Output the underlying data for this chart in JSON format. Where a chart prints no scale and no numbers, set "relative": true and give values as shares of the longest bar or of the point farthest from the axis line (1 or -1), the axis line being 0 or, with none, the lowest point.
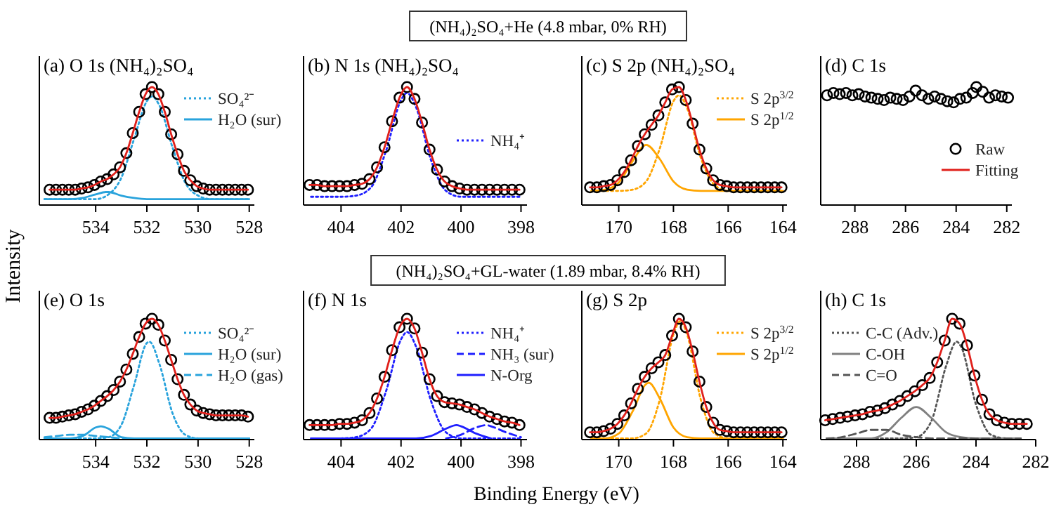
{
  "chart_data": [
    {
      "type": "line",
      "title": "(a) O 1s (NH₄)₂SO₄",
      "ylabel": "Intensity",
      "annotations": [
        "(NH₄)₂SO₄+He (4.8 mbar, 0% RH)"
      ],
      "relative": true,
      "legend": "top right",
      "xlim": [
        536.2,
        527.8
      ],
      "xticks": [
        534,
        532,
        530,
        528
      ],
      "x": [
        535.8,
        535.55,
        535.3,
        535.05,
        534.8,
        534.55,
        534.3,
        534.05,
        533.8,
        533.55,
        533.3,
        533.05,
        532.8,
        532.55,
        532.3,
        532.05,
        531.8,
        531.55,
        531.3,
        531.05,
        530.8,
        530.55,
        530.3,
        530.05,
        529.8,
        529.55,
        529.3,
        529.05,
        528.8,
        528.55,
        528.3,
        528.05
      ],
      "series": [
        {
          "name": "SO₄²⁻",
          "type": "line",
          "line_style": "dotted",
          "color": "#29a3dc",
          "x": [
            536,
            535.5,
            535,
            534.5,
            534,
            533.5,
            533,
            532.5,
            532,
            531.8,
            531.5,
            531,
            530.5,
            530,
            529.5,
            529,
            528.5,
            528
          ],
          "values": [
            0.05,
            0.05,
            0.05,
            0.05,
            0.05,
            0.09,
            0.23,
            0.56,
            0.88,
            0.92,
            0.84,
            0.49,
            0.19,
            0.08,
            0.05,
            0.05,
            0.05,
            0.05
          ]
        },
        {
          "name": "H₂O (sur)",
          "type": "line",
          "line_style": "solid",
          "color": "#29a3dc",
          "x": [
            536,
            535.5,
            535,
            534.5,
            534,
            533.6,
            533.5,
            533,
            532.5,
            532,
            531,
            530,
            529,
            528
          ],
          "values": [
            0.05,
            0.05,
            0.05,
            0.06,
            0.09,
            0.11,
            0.11,
            0.08,
            0.06,
            0.05,
            0.05,
            0.05,
            0.05,
            0.05
          ]
        },
        {
          "type": "scatter",
          "marker": "circle",
          "color": "#000000",
          "values": [
            0.13,
            0.13,
            0.13,
            0.13,
            0.13,
            0.14,
            0.15,
            0.17,
            0.2,
            0.22,
            0.26,
            0.32,
            0.44,
            0.61,
            0.79,
            0.94,
            1.0,
            0.94,
            0.79,
            0.6,
            0.43,
            0.29,
            0.21,
            0.16,
            0.14,
            0.13,
            0.13,
            0.13,
            0.13,
            0.13,
            0.13,
            0.13
          ]
        },
        {
          "type": "line",
          "line_style": "solid",
          "color": "#e0201b",
          "values": [
            0.13,
            0.13,
            0.13,
            0.13,
            0.13,
            0.14,
            0.15,
            0.17,
            0.2,
            0.22,
            0.26,
            0.32,
            0.44,
            0.61,
            0.79,
            0.94,
            1.0,
            0.94,
            0.79,
            0.6,
            0.43,
            0.29,
            0.21,
            0.16,
            0.14,
            0.13,
            0.13,
            0.13,
            0.13,
            0.13,
            0.13,
            0.13
          ]
        }
      ]
    },
    {
      "type": "line",
      "title": "(b) N 1s (NH₄)₂SO₄",
      "relative": true,
      "legend": "right",
      "xlim": [
        405.25,
        397.8
      ],
      "xticks": [
        404,
        402,
        400,
        398
      ],
      "x": [
        405.05,
        404.8,
        404.55,
        404.3,
        404.05,
        403.8,
        403.55,
        403.3,
        403.05,
        402.8,
        402.55,
        402.3,
        402.05,
        401.8,
        401.55,
        401.3,
        401.05,
        400.8,
        400.55,
        400.3,
        400.05,
        399.8,
        399.55,
        399.3,
        399.05,
        398.8,
        398.55,
        398.3,
        398.05
      ],
      "series": [
        {
          "name": "NH₄⁺",
          "type": "line",
          "line_style": "dotted",
          "color": "#1f1fff",
          "x": [
            405,
            404.5,
            404,
            403.5,
            403,
            402.5,
            402,
            401.8,
            401.5,
            401,
            400.5,
            400,
            399.5,
            399,
            398.5,
            398
          ],
          "values": [
            0.07,
            0.07,
            0.07,
            0.08,
            0.15,
            0.46,
            0.89,
            0.95,
            0.83,
            0.38,
            0.12,
            0.07,
            0.07,
            0.07,
            0.07,
            0.07
          ]
        },
        {
          "type": "scatter",
          "marker": "circle",
          "color": "#000000",
          "values": [
            0.17,
            0.17,
            0.16,
            0.16,
            0.16,
            0.16,
            0.17,
            0.18,
            0.22,
            0.32,
            0.49,
            0.71,
            0.91,
            1.0,
            0.9,
            0.7,
            0.47,
            0.3,
            0.2,
            0.16,
            0.14,
            0.13,
            0.13,
            0.13,
            0.13,
            0.13,
            0.13,
            0.13,
            0.13
          ]
        },
        {
          "type": "line",
          "line_style": "solid",
          "color": "#e0201b",
          "values": [
            0.17,
            0.17,
            0.16,
            0.16,
            0.16,
            0.16,
            0.17,
            0.18,
            0.22,
            0.32,
            0.49,
            0.71,
            0.91,
            1.0,
            0.9,
            0.7,
            0.47,
            0.3,
            0.2,
            0.16,
            0.14,
            0.13,
            0.13,
            0.13,
            0.13,
            0.13,
            0.13,
            0.13,
            0.13
          ]
        }
      ]
    },
    {
      "type": "line",
      "title": "(c) S 2p (NH₄)₂SO₄",
      "relative": true,
      "legend": "top right",
      "xlim": [
        171.35,
        163.85
      ],
      "xticks": [
        170,
        168,
        166,
        164
      ],
      "x": [
        171.05,
        170.8,
        170.55,
        170.3,
        170.05,
        169.8,
        169.55,
        169.3,
        169.05,
        168.8,
        168.55,
        168.3,
        168.05,
        167.8,
        167.55,
        167.3,
        167.05,
        166.8,
        166.55,
        166.3,
        166.05,
        165.8,
        165.55,
        165.3,
        165.05,
        164.8,
        164.55,
        164.3,
        164.05
      ],
      "series": [
        {
          "name": "S 2p$^{3/2}$",
          "type": "line",
          "line_style": "dotted",
          "color": "#ffa500",
          "x": [
            171,
            170.5,
            170,
            169.5,
            169,
            168.5,
            168,
            167.8,
            167.5,
            167,
            166.5,
            166,
            165.5,
            165,
            164.5,
            164
          ],
          "values": [
            0.12,
            0.12,
            0.12,
            0.13,
            0.2,
            0.48,
            0.88,
            0.93,
            0.82,
            0.4,
            0.17,
            0.12,
            0.12,
            0.12,
            0.12,
            0.12
          ]
        },
        {
          "name": "S 2p$^{1/2}$",
          "type": "line",
          "line_style": "solid",
          "color": "#ffa500",
          "x": [
            171,
            170.5,
            170,
            169.5,
            169,
            168.5,
            168,
            167.5,
            167,
            166.5,
            166,
            165.5,
            165,
            164.5,
            164
          ],
          "values": [
            0.12,
            0.13,
            0.19,
            0.37,
            0.51,
            0.39,
            0.2,
            0.13,
            0.12,
            0.12,
            0.12,
            0.12,
            0.12,
            0.12,
            0.12
          ]
        },
        {
          "type": "scatter",
          "marker": "circle",
          "color": "#000000",
          "values": [
            0.15,
            0.15,
            0.16,
            0.17,
            0.21,
            0.28,
            0.38,
            0.5,
            0.6,
            0.68,
            0.76,
            0.87,
            0.98,
            1.0,
            0.89,
            0.69,
            0.47,
            0.31,
            0.21,
            0.17,
            0.16,
            0.15,
            0.15,
            0.15,
            0.15,
            0.15,
            0.15,
            0.15,
            0.15
          ]
        },
        {
          "type": "line",
          "line_style": "solid",
          "color": "#e0201b",
          "values": [
            0.15,
            0.15,
            0.16,
            0.17,
            0.21,
            0.28,
            0.38,
            0.5,
            0.6,
            0.68,
            0.76,
            0.87,
            0.98,
            1.0,
            0.89,
            0.69,
            0.47,
            0.31,
            0.21,
            0.17,
            0.16,
            0.15,
            0.15,
            0.15,
            0.15,
            0.15,
            0.15,
            0.15,
            0.15
          ]
        }
      ]
    },
    {
      "type": "line",
      "title": "(d) C 1s",
      "relative": true,
      "legend": "bottom right",
      "xlim": [
        289.35,
        281.8
      ],
      "xticks": [
        288,
        286,
        284,
        282
      ],
      "x": [
        289.1,
        288.85,
        288.6,
        288.35,
        288.1,
        287.85,
        287.6,
        287.35,
        287.1,
        286.85,
        286.6,
        286.35,
        286.1,
        285.85,
        285.6,
        285.35,
        285.1,
        284.85,
        284.6,
        284.35,
        284.1,
        283.85,
        283.6,
        283.35,
        283.2,
        282.95,
        282.7,
        282.45,
        282.2,
        281.95
      ],
      "series": [
        {
          "name": "Raw",
          "type": "scatter",
          "marker": "circle",
          "color": "#000000",
          "values": [
            0.93,
            0.95,
            0.94,
            0.95,
            0.93,
            0.94,
            0.92,
            0.91,
            0.9,
            0.89,
            0.91,
            0.9,
            0.89,
            0.92,
            0.97,
            0.93,
            0.9,
            0.92,
            0.9,
            0.88,
            0.87,
            0.9,
            0.91,
            0.95,
            1.0,
            0.96,
            0.91,
            0.93,
            0.92,
            0.91
          ]
        },
        {
          "name": "Fitting",
          "type": "line",
          "line_style": "solid",
          "color": "#e0201b",
          "values": [
            null,
            null,
            null,
            null,
            null,
            null,
            null,
            null,
            null,
            null,
            null,
            null,
            null,
            null,
            null,
            null,
            null,
            null,
            null,
            null,
            null,
            null,
            null,
            null,
            null,
            null,
            null,
            null,
            null,
            null
          ]
        }
      ]
    },
    {
      "type": "line",
      "title": "(e) O 1s",
      "annotations": [
        "(NH₄)₂SO₄+GL-water (1.89 mbar, 8.4% RH)"
      ],
      "relative": true,
      "legend": "top right",
      "xlim": [
        536.2,
        527.8
      ],
      "xticks": [
        534,
        532,
        530,
        528
      ],
      "x": [
        535.8,
        535.55,
        535.3,
        535.05,
        534.8,
        534.55,
        534.3,
        534.05,
        533.8,
        533.55,
        533.3,
        533.05,
        532.8,
        532.55,
        532.3,
        532.05,
        531.8,
        531.55,
        531.3,
        531.05,
        530.8,
        530.55,
        530.3,
        530.05,
        529.8,
        529.55,
        529.3,
        529.05,
        528.8,
        528.55,
        528.3,
        528.05
      ],
      "series": [
        {
          "name": "SO₄²⁻",
          "type": "line",
          "line_style": "dotted",
          "color": "#29a3dc",
          "x": [
            536,
            535.5,
            535,
            534.5,
            534,
            533.5,
            533,
            532.5,
            532,
            531.9,
            531.5,
            531,
            530.5,
            530,
            529.5,
            529,
            528.5,
            528
          ],
          "values": [
            0.01,
            0.01,
            0.01,
            0.01,
            0.01,
            0.02,
            0.12,
            0.45,
            0.8,
            0.81,
            0.62,
            0.22,
            0.04,
            0.01,
            0.01,
            0.01,
            0.01,
            0.01
          ]
        },
        {
          "name": "H₂O (sur)",
          "type": "line",
          "line_style": "solid",
          "color": "#29a3dc",
          "x": [
            536,
            535.5,
            535,
            534.5,
            534,
            533.8,
            533.5,
            533,
            532.5,
            532,
            530,
            528
          ],
          "values": [
            0.01,
            0.01,
            0.01,
            0.03,
            0.1,
            0.11,
            0.09,
            0.02,
            0.01,
            0.01,
            0.01,
            0.01
          ]
        },
        {
          "name": "H₂O (gas)",
          "type": "line",
          "line_style": "dashed",
          "color": "#29a3dc",
          "x": [
            536,
            535.5,
            535,
            534.5,
            534,
            533.5,
            533,
            532.5,
            530,
            528
          ],
          "values": [
            0.02,
            0.03,
            0.04,
            0.04,
            0.03,
            0.02,
            0.01,
            0.01,
            0.01,
            0.01
          ]
        },
        {
          "type": "scatter",
          "marker": "circle",
          "color": "#000000",
          "values": [
            0.18,
            0.18,
            0.19,
            0.2,
            0.21,
            0.23,
            0.25,
            0.28,
            0.32,
            0.36,
            0.41,
            0.48,
            0.58,
            0.71,
            0.85,
            0.96,
            1.0,
            0.95,
            0.82,
            0.66,
            0.5,
            0.37,
            0.29,
            0.24,
            0.22,
            0.21,
            0.2,
            0.2,
            0.2,
            0.2,
            0.2,
            0.19
          ]
        },
        {
          "type": "line",
          "line_style": "solid",
          "color": "#e0201b",
          "values": [
            0.18,
            0.18,
            0.19,
            0.2,
            0.21,
            0.23,
            0.25,
            0.28,
            0.32,
            0.36,
            0.41,
            0.48,
            0.58,
            0.71,
            0.85,
            0.96,
            1.0,
            0.95,
            0.82,
            0.66,
            0.5,
            0.37,
            0.29,
            0.24,
            0.22,
            0.21,
            0.2,
            0.2,
            0.2,
            0.2,
            0.2,
            0.19
          ]
        }
      ]
    },
    {
      "type": "line",
      "title": "(f) N 1s",
      "xlabel": "Binding Energy (eV)",
      "relative": true,
      "legend": "top right",
      "xlim": [
        405.25,
        397.8
      ],
      "xticks": [
        404,
        402,
        400,
        398
      ],
      "x": [
        405.05,
        404.8,
        404.55,
        404.3,
        404.05,
        403.8,
        403.55,
        403.3,
        403.05,
        402.8,
        402.55,
        402.3,
        402.05,
        401.8,
        401.55,
        401.3,
        401.05,
        400.8,
        400.55,
        400.3,
        400.05,
        399.8,
        399.55,
        399.3,
        399.05,
        398.8,
        398.55,
        398.3,
        398.05
      ],
      "series": [
        {
          "name": "NH₄⁺",
          "type": "line",
          "line_style": "dotted",
          "color": "#1f1fff",
          "x": [
            405,
            404.5,
            404,
            403.5,
            403,
            402.5,
            402,
            401.8,
            401.5,
            401,
            400.5,
            400,
            399.5,
            399,
            398.5,
            398
          ],
          "values": [
            0.01,
            0.01,
            0.01,
            0.02,
            0.09,
            0.4,
            0.83,
            0.89,
            0.77,
            0.32,
            0.06,
            0.01,
            0.01,
            0.01,
            0.01,
            0.01
          ]
        },
        {
          "name": "NH₃ (sur)",
          "type": "line",
          "line_style": "dashed",
          "color": "#1f1fff",
          "x": [
            400.5,
            400,
            399.5,
            399.15,
            399,
            398.5,
            398
          ],
          "values": [
            0.01,
            0.04,
            0.1,
            0.12,
            0.11,
            0.06,
            0.02
          ]
        },
        {
          "name": "N-Org",
          "type": "line",
          "line_style": "solid",
          "color": "#1f1fff",
          "x": [
            405,
            401.5,
            401,
            400.5,
            400.15,
            400,
            399.5,
            399
          ],
          "values": [
            0.01,
            0.01,
            0.03,
            0.09,
            0.12,
            0.11,
            0.05,
            0.01
          ]
        },
        {
          "type": "scatter",
          "marker": "circle",
          "color": "#000000",
          "values": [
            0.12,
            0.12,
            0.12,
            0.12,
            0.13,
            0.13,
            0.14,
            0.16,
            0.22,
            0.34,
            0.52,
            0.74,
            0.93,
            1.0,
            0.92,
            0.72,
            0.5,
            0.36,
            0.31,
            0.3,
            0.29,
            0.27,
            0.25,
            0.22,
            0.19,
            0.17,
            0.15,
            0.14,
            0.12
          ]
        },
        {
          "type": "line",
          "line_style": "solid",
          "color": "#e0201b",
          "values": [
            0.12,
            0.12,
            0.12,
            0.12,
            0.13,
            0.13,
            0.14,
            0.16,
            0.22,
            0.34,
            0.52,
            0.74,
            0.93,
            1.0,
            0.92,
            0.72,
            0.5,
            0.36,
            0.31,
            0.3,
            0.29,
            0.27,
            0.25,
            0.22,
            0.19,
            0.17,
            0.15,
            0.14,
            0.12
          ]
        }
      ]
    },
    {
      "type": "line",
      "title": "(g) S 2p",
      "relative": true,
      "legend": "top right",
      "xlim": [
        171.35,
        163.85
      ],
      "xticks": [
        170,
        168,
        166,
        164
      ],
      "x": [
        171.05,
        170.8,
        170.55,
        170.3,
        170.05,
        169.8,
        169.55,
        169.3,
        169.05,
        168.8,
        168.55,
        168.3,
        168.05,
        167.8,
        167.55,
        167.3,
        167.05,
        166.8,
        166.55,
        166.3,
        166.05,
        165.8,
        165.55,
        165.3,
        165.05,
        164.8,
        164.55,
        164.3,
        164.05
      ],
      "series": [
        {
          "name": "S 2p$^{3/2}$",
          "type": "line",
          "line_style": "dotted",
          "color": "#ffa500",
          "x": [
            171,
            170.5,
            170,
            169.5,
            169,
            168.5,
            168,
            167.75,
            167.5,
            167,
            166.5,
            166,
            165.5,
            165,
            164.5,
            164
          ],
          "values": [
            0.01,
            0.01,
            0.01,
            0.01,
            0.05,
            0.33,
            0.87,
            0.98,
            0.87,
            0.33,
            0.05,
            0.01,
            0.01,
            0.01,
            0.01,
            0.01
          ]
        },
        {
          "name": "S 2p$^{1/2}$",
          "type": "line",
          "line_style": "solid",
          "color": "#ffa500",
          "x": [
            171,
            170.5,
            170,
            169.5,
            169,
            168.9,
            168.5,
            168,
            167.5,
            167,
            166,
            165,
            164
          ],
          "values": [
            0.01,
            0.01,
            0.05,
            0.23,
            0.46,
            0.47,
            0.34,
            0.1,
            0.02,
            0.01,
            0.01,
            0.01,
            0.01
          ]
        },
        {
          "type": "scatter",
          "marker": "circle",
          "color": "#000000",
          "values": [
            0.06,
            0.06,
            0.07,
            0.09,
            0.13,
            0.2,
            0.3,
            0.42,
            0.52,
            0.59,
            0.64,
            0.7,
            0.86,
            1.0,
            0.93,
            0.73,
            0.48,
            0.27,
            0.14,
            0.08,
            0.07,
            0.06,
            0.06,
            0.06,
            0.06,
            0.06,
            0.06,
            0.06,
            0.06
          ]
        },
        {
          "type": "line",
          "line_style": "solid",
          "color": "#e0201b",
          "values": [
            0.06,
            0.06,
            0.07,
            0.09,
            0.13,
            0.2,
            0.3,
            0.42,
            0.52,
            0.59,
            0.64,
            0.7,
            0.86,
            1.0,
            0.93,
            0.73,
            0.48,
            0.27,
            0.14,
            0.08,
            0.07,
            0.06,
            0.06,
            0.06,
            0.06,
            0.06,
            0.06,
            0.06,
            0.06
          ]
        }
      ]
    },
    {
      "type": "line",
      "title": "(h) C 1s",
      "relative": true,
      "legend": "top left",
      "xlim": [
        289.2,
        282
      ],
      "xticks": [
        288,
        286,
        284,
        282
      ],
      "x": [
        289.05,
        288.8,
        288.55,
        288.3,
        288.05,
        287.8,
        287.55,
        287.3,
        287.05,
        286.8,
        286.55,
        286.3,
        286.05,
        285.8,
        285.55,
        285.3,
        285.05,
        284.8,
        284.55,
        284.3,
        284.05,
        283.8,
        283.55,
        283.3,
        283.05,
        282.8,
        282.55,
        282.3
      ],
      "series": [
        {
          "name": "C-C (Adv.)",
          "type": "line",
          "line_style": "dotted",
          "color": "#555555",
          "x": [
            289,
            288,
            287,
            286.5,
            286,
            285.5,
            285,
            284.65,
            284.5,
            284,
            283.5,
            283,
            282.5
          ],
          "values": [
            0.01,
            0.01,
            0.01,
            0.01,
            0.02,
            0.15,
            0.61,
            0.81,
            0.77,
            0.29,
            0.04,
            0.01,
            0.01
          ]
        },
        {
          "name": "C-OH",
          "type": "line",
          "line_style": "solid",
          "color": "#808080",
          "x": [
            289,
            288,
            287.5,
            287,
            286.5,
            286,
            285.5,
            285,
            284.5,
            284,
            283,
            282.5
          ],
          "values": [
            0.01,
            0.01,
            0.01,
            0.06,
            0.18,
            0.27,
            0.18,
            0.06,
            0.02,
            0.01,
            0.01,
            0.01
          ]
        },
        {
          "name": "C=O",
          "type": "line",
          "line_style": "dashed",
          "color": "#555555",
          "x": [
            289,
            288.5,
            288,
            287.5,
            287.3,
            287,
            286.5,
            286,
            285.5,
            284,
            282.5
          ],
          "values": [
            0.01,
            0.02,
            0.05,
            0.08,
            0.08,
            0.08,
            0.04,
            0.02,
            0.01,
            0.01,
            0.01
          ]
        },
        {
          "type": "scatter",
          "marker": "circle",
          "color": "#000000",
          "values": [
            0.16,
            0.17,
            0.18,
            0.19,
            0.2,
            0.21,
            0.23,
            0.24,
            0.26,
            0.29,
            0.32,
            0.36,
            0.4,
            0.45,
            0.51,
            0.64,
            0.82,
            1.0,
            0.96,
            0.78,
            0.53,
            0.33,
            0.21,
            0.16,
            0.14,
            0.13,
            0.13,
            0.13
          ]
        },
        {
          "type": "line",
          "line_style": "solid",
          "color": "#e0201b",
          "values": [
            0.16,
            0.17,
            0.18,
            0.19,
            0.2,
            0.21,
            0.23,
            0.24,
            0.26,
            0.29,
            0.32,
            0.36,
            0.4,
            0.45,
            0.51,
            0.64,
            0.82,
            1.0,
            0.96,
            0.78,
            0.53,
            0.33,
            0.21,
            0.16,
            0.14,
            0.13,
            0.13,
            0.13
          ]
        }
      ]
    }
  ]
}
